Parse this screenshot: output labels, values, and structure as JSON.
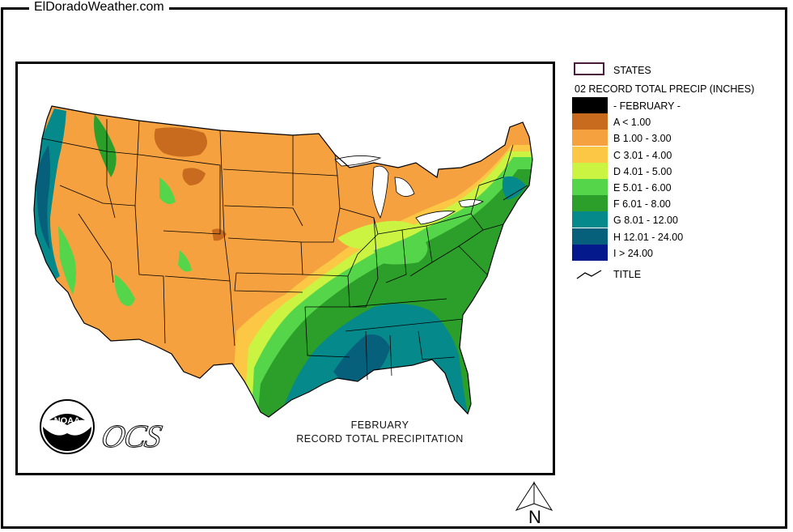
{
  "site": {
    "title": "ElDoradoWeather.com"
  },
  "map": {
    "title_line1": "FEBRUARY",
    "title_line2": "RECORD TOTAL PRECIPITATION",
    "logos": {
      "noaa": "NOAA",
      "ocs": "OCS"
    },
    "north_label": "N"
  },
  "legend": {
    "states_label": "STATES",
    "heading": "02 RECORD TOTAL PRECIP (INCHES)",
    "title_label": "TITLE",
    "items": [
      {
        "label": "- FEBRUARY -",
        "color": "#000000"
      },
      {
        "label": "A < 1.00",
        "color": "#c86b1e"
      },
      {
        "label": "B 1.00 - 3.00",
        "color": "#f6a13f"
      },
      {
        "label": "C 3.01 - 4.00",
        "color": "#fcc744"
      },
      {
        "label": "D 4.01 - 5.00",
        "color": "#cbf341"
      },
      {
        "label": "E 5.01 - 6.00",
        "color": "#55d64a"
      },
      {
        "label": "F 6.01 - 8.00",
        "color": "#2c9e2a"
      },
      {
        "label": "G 8.01 - 12.00",
        "color": "#06898a"
      },
      {
        "label": "H 12.01 - 24.00",
        "color": "#06607c"
      },
      {
        "label": "I > 24.00",
        "color": "#04198c"
      }
    ]
  }
}
